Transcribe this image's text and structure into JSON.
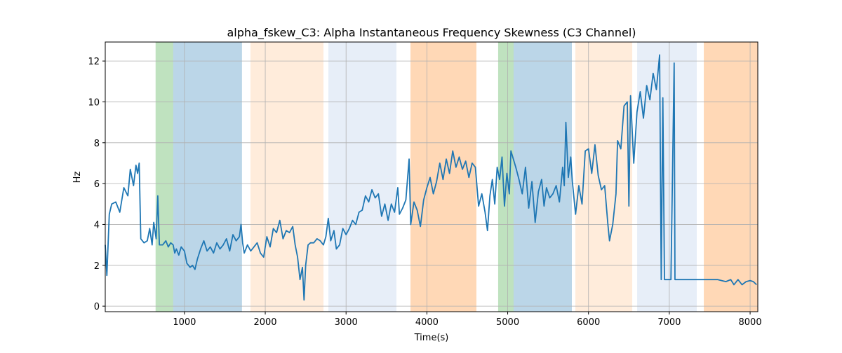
{
  "chart_data": {
    "type": "line",
    "title": "alpha_fskew_C3: Alpha Instantaneous Frequency Skewness (C3 Channel)",
    "x_label": "Time(s)",
    "y_label": "Hz",
    "xlim": [
      20,
      8095
    ],
    "ylim": [
      -0.27,
      12.93
    ],
    "xticks": [
      1000,
      2000,
      3000,
      4000,
      5000,
      6000,
      7000,
      8000
    ],
    "yticks": [
      0,
      2,
      4,
      6,
      8,
      10,
      12
    ],
    "grid": true,
    "spans": [
      {
        "start": 643,
        "end": 861,
        "color": "#2ca02c",
        "alpha": 0.3
      },
      {
        "start": 861,
        "end": 1712,
        "color": "#1f77b4",
        "alpha": 0.3
      },
      {
        "start": 1817,
        "end": 2720,
        "color": "#ff7f0e",
        "alpha": 0.15
      },
      {
        "start": 2781,
        "end": 3623,
        "color": "#aec7e8",
        "alpha": 0.3
      },
      {
        "start": 3797,
        "end": 4613,
        "color": "#ff7f0e",
        "alpha": 0.3
      },
      {
        "start": 4882,
        "end": 5073,
        "color": "#2ca02c",
        "alpha": 0.3
      },
      {
        "start": 5073,
        "end": 5794,
        "color": "#1f77b4",
        "alpha": 0.3
      },
      {
        "start": 5837,
        "end": 6541,
        "color": "#ff7f0e",
        "alpha": 0.15
      },
      {
        "start": 6602,
        "end": 7340,
        "color": "#aec7e8",
        "alpha": 0.3
      },
      {
        "start": 7427,
        "end": 8095,
        "color": "#ff7f0e",
        "alpha": 0.3
      }
    ],
    "x": [
      20,
      40,
      70,
      100,
      150,
      200,
      250,
      300,
      330,
      370,
      400,
      420,
      440,
      460,
      500,
      540,
      570,
      600,
      620,
      650,
      670,
      690,
      730,
      770,
      800,
      830,
      860,
      880,
      900,
      930,
      960,
      1000,
      1030,
      1070,
      1100,
      1130,
      1160,
      1200,
      1240,
      1280,
      1320,
      1360,
      1400,
      1440,
      1480,
      1520,
      1560,
      1600,
      1640,
      1680,
      1700,
      1720,
      1740,
      1780,
      1820,
      1860,
      1900,
      1940,
      1980,
      2020,
      2060,
      2100,
      2140,
      2180,
      2220,
      2260,
      2300,
      2340,
      2370,
      2400,
      2430,
      2460,
      2480,
      2500,
      2530,
      2560,
      2600,
      2640,
      2680,
      2720,
      2750,
      2780,
      2810,
      2850,
      2880,
      2920,
      2960,
      3000,
      3040,
      3080,
      3120,
      3160,
      3200,
      3240,
      3280,
      3320,
      3360,
      3400,
      3440,
      3480,
      3520,
      3560,
      3600,
      3640,
      3660,
      3700,
      3740,
      3780,
      3800,
      3840,
      3880,
      3920,
      3960,
      4000,
      4040,
      4080,
      4120,
      4160,
      4200,
      4240,
      4280,
      4320,
      4360,
      4400,
      4440,
      4480,
      4520,
      4560,
      4600,
      4640,
      4680,
      4720,
      4750,
      4780,
      4810,
      4840,
      4870,
      4900,
      4930,
      4960,
      4990,
      5020,
      5040,
      5070,
      5100,
      5140,
      5180,
      5220,
      5260,
      5300,
      5340,
      5380,
      5420,
      5450,
      5480,
      5520,
      5560,
      5600,
      5640,
      5680,
      5700,
      5720,
      5750,
      5780,
      5800,
      5840,
      5880,
      5920,
      5960,
      6000,
      6040,
      6080,
      6120,
      6160,
      6200,
      6240,
      6260,
      6300,
      6340,
      6360,
      6400,
      6440,
      6480,
      6500,
      6520,
      6560,
      6600,
      6640,
      6680,
      6720,
      6760,
      6800,
      6840,
      6880,
      6900,
      6920,
      6940,
      6980,
      7020,
      7060,
      7070,
      7200,
      7400,
      7600,
      7700,
      7760,
      7800,
      7850,
      7900,
      7950,
      8000,
      8040,
      8080
    ],
    "series": [
      {
        "color": "#1f77b4",
        "values": [
          3.0,
          1.5,
          4.5,
          5.0,
          5.1,
          4.6,
          5.8,
          5.4,
          6.7,
          5.9,
          6.9,
          6.5,
          7.0,
          3.3,
          3.1,
          3.2,
          3.8,
          3.0,
          4.1,
          3.3,
          5.4,
          3.0,
          3.0,
          3.2,
          2.9,
          3.1,
          3.0,
          2.6,
          2.8,
          2.5,
          2.9,
          2.7,
          2.1,
          1.9,
          2.0,
          1.8,
          2.3,
          2.8,
          3.2,
          2.7,
          2.9,
          2.6,
          3.1,
          2.8,
          3.0,
          3.3,
          2.7,
          3.5,
          3.2,
          3.4,
          4.0,
          3.1,
          2.6,
          3.0,
          2.7,
          2.9,
          3.1,
          2.6,
          2.4,
          3.4,
          2.9,
          3.8,
          3.6,
          4.2,
          3.3,
          3.7,
          3.6,
          3.9,
          3.0,
          2.4,
          1.3,
          1.9,
          0.3,
          2.0,
          3.0,
          3.1,
          3.1,
          3.3,
          3.2,
          3.0,
          3.4,
          4.3,
          3.2,
          3.7,
          2.8,
          3.0,
          3.8,
          3.5,
          3.8,
          4.2,
          4.0,
          4.6,
          4.7,
          5.4,
          5.1,
          5.7,
          5.3,
          5.5,
          4.4,
          5.0,
          4.2,
          5.0,
          4.6,
          5.8,
          4.5,
          4.8,
          5.2,
          7.2,
          4.0,
          5.1,
          4.7,
          3.9,
          5.2,
          5.8,
          6.3,
          5.5,
          6.1,
          7.0,
          6.2,
          7.2,
          6.5,
          7.6,
          6.8,
          7.3,
          6.7,
          7.1,
          6.3,
          7.0,
          6.8,
          4.9,
          5.5,
          4.6,
          3.7,
          5.4,
          6.2,
          5.0,
          6.8,
          6.2,
          7.3,
          4.9,
          6.5,
          5.5,
          7.6,
          7.2,
          6.8,
          6.2,
          5.5,
          6.8,
          4.8,
          6.1,
          4.1,
          5.6,
          6.2,
          4.9,
          5.8,
          5.3,
          5.5,
          5.9,
          5.1,
          6.8,
          5.9,
          9.0,
          6.3,
          7.3,
          6.1,
          4.5,
          5.9,
          5.0,
          7.6,
          7.7,
          6.5,
          7.9,
          6.4,
          5.7,
          5.9,
          4.0,
          3.2,
          4.0,
          5.5,
          8.1,
          7.7,
          9.8,
          10.0,
          4.9,
          10.3,
          7.0,
          9.5,
          10.5,
          9.2,
          10.8,
          10.1,
          11.4,
          10.6,
          12.3,
          1.3,
          10.2,
          1.3,
          1.3,
          1.3,
          11.9,
          1.3,
          1.3,
          1.3,
          1.3,
          1.2,
          1.3,
          1.05,
          1.3,
          1.05,
          1.2,
          1.25,
          1.2,
          1.05
        ]
      }
    ]
  }
}
